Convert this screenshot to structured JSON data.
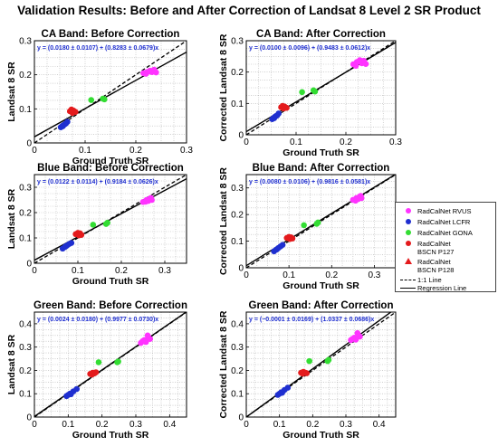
{
  "figure_title": "Validation Results: Before and After Correction of Landsat 8 Level 2 SR Product",
  "colors": {
    "RVUS": "#ff33ff",
    "LCFR": "#1f2fd0",
    "GONA": "#33dd33",
    "P127": "#e41a1c",
    "P128": "#e41a1c",
    "equation": "#1f2fd0"
  },
  "legend": {
    "items": [
      {
        "label": "RadCalNet RVUS",
        "symbol": "dot",
        "color": "#ff33ff"
      },
      {
        "label": "RadCalNet LCFR",
        "symbol": "dot",
        "color": "#1f2fd0"
      },
      {
        "label": "RadCalNet GONA",
        "symbol": "dot",
        "color": "#33dd33"
      },
      {
        "label": "RadCalNet\nBSCN P127",
        "symbol": "dot",
        "color": "#e41a1c"
      },
      {
        "label": "RadCalNet\nBSCN P128",
        "symbol": "triangle",
        "color": "#e41a1c"
      },
      {
        "label": "1:1 Line",
        "symbol": "dashed-line",
        "color": "#000000"
      },
      {
        "label": "Regression Line",
        "symbol": "solid-line",
        "color": "#000000"
      }
    ]
  },
  "chart_data": [
    {
      "type": "scatter",
      "title": "CA Band: Before Correction",
      "xlabel": "Ground Truth SR",
      "ylabel": "Landsat 8 SR",
      "xlim": [
        0,
        0.3
      ],
      "ylim": [
        0,
        0.3
      ],
      "xticks": [
        "0",
        "0.1",
        "0.2",
        "0.3"
      ],
      "yticks": [
        "0",
        "0.1",
        "0.2",
        "0.3"
      ],
      "grid": true,
      "equation": "y = (0.0180 ± 0.0107) + (0.8283 ± 0.0679)x",
      "regression": {
        "intercept": 0.018,
        "slope": 0.8283
      },
      "series": [
        {
          "name": "RadCalNet RVUS",
          "points": [
            [
              0.215,
              0.205
            ],
            [
              0.222,
              0.208
            ],
            [
              0.228,
              0.212
            ],
            [
              0.232,
              0.208
            ],
            [
              0.236,
              0.215
            ],
            [
              0.24,
              0.207
            ],
            [
              0.22,
              0.203
            ],
            [
              0.226,
              0.21
            ]
          ]
        },
        {
          "name": "RadCalNet LCFR",
          "points": [
            [
              0.052,
              0.046
            ],
            [
              0.055,
              0.05
            ],
            [
              0.058,
              0.053
            ],
            [
              0.062,
              0.057
            ],
            [
              0.065,
              0.062
            ],
            [
              0.06,
              0.055
            ],
            [
              0.056,
              0.049
            ]
          ]
        },
        {
          "name": "RadCalNet GONA",
          "points": [
            [
              0.112,
              0.126
            ],
            [
              0.135,
              0.13
            ],
            [
              0.138,
              0.128
            ]
          ]
        },
        {
          "name": "RadCalNet BSCN P127",
          "points": [
            [
              0.07,
              0.093
            ],
            [
              0.073,
              0.098
            ],
            [
              0.077,
              0.095
            ],
            [
              0.081,
              0.091
            ],
            [
              0.075,
              0.088
            ]
          ]
        },
        {
          "name": "RadCalNet BSCN P128",
          "points": []
        }
      ]
    },
    {
      "type": "scatter",
      "title": "CA Band: After Correction",
      "xlabel": "Ground Truth SR",
      "ylabel": "Corrected Landsat 8 SR",
      "xlim": [
        0,
        0.3
      ],
      "ylim": [
        0,
        0.3
      ],
      "xticks": [
        "0",
        "0.1",
        "0.2",
        "0.3"
      ],
      "yticks": [
        "0",
        "0.1",
        "0.2",
        "0.3"
      ],
      "grid": true,
      "equation": "y = (0.0100 ± 0.0096) + (0.9483 ± 0.0612)x",
      "regression": {
        "intercept": 0.01,
        "slope": 0.9483
      },
      "series": [
        {
          "name": "RadCalNet RVUS",
          "points": [
            [
              0.215,
              0.225
            ],
            [
              0.222,
              0.232
            ],
            [
              0.228,
              0.238
            ],
            [
              0.232,
              0.228
            ],
            [
              0.236,
              0.236
            ],
            [
              0.24,
              0.226
            ],
            [
              0.22,
              0.22
            ],
            [
              0.226,
              0.234
            ]
          ]
        },
        {
          "name": "RadCalNet LCFR",
          "points": [
            [
              0.052,
              0.05
            ],
            [
              0.055,
              0.054
            ],
            [
              0.058,
              0.058
            ],
            [
              0.062,
              0.062
            ],
            [
              0.065,
              0.068
            ],
            [
              0.06,
              0.06
            ],
            [
              0.056,
              0.053
            ]
          ]
        },
        {
          "name": "RadCalNet GONA",
          "points": [
            [
              0.112,
              0.136
            ],
            [
              0.135,
              0.142
            ],
            [
              0.138,
              0.138
            ]
          ]
        },
        {
          "name": "RadCalNet BSCN P127",
          "points": [
            [
              0.07,
              0.088
            ],
            [
              0.073,
              0.092
            ],
            [
              0.077,
              0.09
            ],
            [
              0.081,
              0.086
            ],
            [
              0.075,
              0.084
            ]
          ]
        },
        {
          "name": "RadCalNet BSCN P128",
          "points": []
        }
      ]
    },
    {
      "type": "scatter",
      "title": "Blue Band: Before Correction",
      "xlabel": "Ground Truth SR",
      "ylabel": "Landsat 8 SR",
      "xlim": [
        0,
        0.35
      ],
      "ylim": [
        0,
        0.35
      ],
      "xticks": [
        "0",
        "0.1",
        "0.2",
        "0.3"
      ],
      "yticks": [
        "0",
        "0.1",
        "0.2",
        "0.3"
      ],
      "grid": true,
      "equation": "y = (0.0122 ± 0.0114) + (0.9184 ± 0.0626)x",
      "regression": {
        "intercept": 0.0122,
        "slope": 0.9184
      },
      "series": [
        {
          "name": "RadCalNet RVUS",
          "points": [
            [
              0.25,
              0.242
            ],
            [
              0.258,
              0.25
            ],
            [
              0.262,
              0.246
            ],
            [
              0.266,
              0.255
            ],
            [
              0.27,
              0.25
            ],
            [
              0.256,
              0.243
            ],
            [
              0.268,
              0.258
            ]
          ]
        },
        {
          "name": "RadCalNet LCFR",
          "points": [
            [
              0.065,
              0.058
            ],
            [
              0.07,
              0.064
            ],
            [
              0.075,
              0.07
            ],
            [
              0.08,
              0.076
            ],
            [
              0.085,
              0.08
            ],
            [
              0.072,
              0.067
            ]
          ]
        },
        {
          "name": "RadCalNet GONA",
          "points": [
            [
              0.135,
              0.152
            ],
            [
              0.165,
              0.155
            ],
            [
              0.168,
              0.16
            ]
          ]
        },
        {
          "name": "RadCalNet BSCN P127",
          "points": [
            [
              0.095,
              0.115
            ],
            [
              0.1,
              0.12
            ],
            [
              0.105,
              0.118
            ],
            [
              0.108,
              0.112
            ],
            [
              0.102,
              0.11
            ]
          ]
        },
        {
          "name": "RadCalNet BSCN P128",
          "points": []
        }
      ]
    },
    {
      "type": "scatter",
      "title": "Blue Band: After Correction",
      "xlabel": "Ground Truth SR",
      "ylabel": "Corrected Landsat 8 SR",
      "xlim": [
        0,
        0.35
      ],
      "ylim": [
        0,
        0.35
      ],
      "xticks": [
        "0",
        "0.1",
        "0.2",
        "0.3"
      ],
      "yticks": [
        "0",
        "0.1",
        "0.2",
        "0.3"
      ],
      "grid": true,
      "equation": "y = (0.0080 ± 0.0106) + (0.9816 ± 0.0581)x",
      "regression": {
        "intercept": 0.008,
        "slope": 0.9816
      },
      "series": [
        {
          "name": "RadCalNet RVUS",
          "points": [
            [
              0.25,
              0.255
            ],
            [
              0.258,
              0.262
            ],
            [
              0.262,
              0.258
            ],
            [
              0.266,
              0.268
            ],
            [
              0.27,
              0.262
            ],
            [
              0.256,
              0.252
            ],
            [
              0.268,
              0.27
            ]
          ]
        },
        {
          "name": "RadCalNet LCFR",
          "points": [
            [
              0.065,
              0.062
            ],
            [
              0.07,
              0.068
            ],
            [
              0.075,
              0.074
            ],
            [
              0.08,
              0.08
            ],
            [
              0.085,
              0.086
            ],
            [
              0.072,
              0.07
            ]
          ]
        },
        {
          "name": "RadCalNet GONA",
          "points": [
            [
              0.135,
              0.16
            ],
            [
              0.165,
              0.165
            ],
            [
              0.168,
              0.17
            ]
          ]
        },
        {
          "name": "RadCalNet BSCN P127",
          "points": [
            [
              0.095,
              0.112
            ],
            [
              0.1,
              0.116
            ],
            [
              0.105,
              0.114
            ],
            [
              0.108,
              0.11
            ],
            [
              0.102,
              0.108
            ]
          ]
        },
        {
          "name": "RadCalNet BSCN P128",
          "points": []
        }
      ]
    },
    {
      "type": "scatter",
      "title": "Green Band: Before Correction",
      "xlabel": "Ground Truth SR",
      "ylabel": "Landsat 8 SR",
      "xlim": [
        0,
        0.45
      ],
      "ylim": [
        0,
        0.45
      ],
      "xticks": [
        "0",
        "0.1",
        "0.2",
        "0.3",
        "0.4"
      ],
      "yticks": [
        "0",
        "0.1",
        "0.2",
        "0.3",
        "0.4"
      ],
      "grid": true,
      "equation": "y = (0.0024 ± 0.0180) + (0.9977 ± 0.0730)x",
      "regression": {
        "intercept": 0.0024,
        "slope": 0.9977
      },
      "series": [
        {
          "name": "RadCalNet RVUS",
          "points": [
            [
              0.315,
              0.318
            ],
            [
              0.325,
              0.33
            ],
            [
              0.33,
              0.322
            ],
            [
              0.338,
              0.34
            ],
            [
              0.342,
              0.335
            ],
            [
              0.32,
              0.325
            ],
            [
              0.335,
              0.35
            ]
          ]
        },
        {
          "name": "RadCalNet LCFR",
          "points": [
            [
              0.095,
              0.09
            ],
            [
              0.1,
              0.095
            ],
            [
              0.105,
              0.1
            ],
            [
              0.115,
              0.11
            ],
            [
              0.125,
              0.12
            ],
            [
              0.108,
              0.098
            ]
          ]
        },
        {
          "name": "RadCalNet GONA",
          "points": [
            [
              0.19,
              0.235
            ],
            [
              0.245,
              0.235
            ],
            [
              0.248,
              0.238
            ]
          ]
        },
        {
          "name": "RadCalNet BSCN P127",
          "points": [
            [
              0.165,
              0.185
            ],
            [
              0.172,
              0.19
            ],
            [
              0.178,
              0.188
            ],
            [
              0.182,
              0.192
            ],
            [
              0.17,
              0.182
            ]
          ]
        },
        {
          "name": "RadCalNet BSCN P128",
          "points": []
        }
      ]
    },
    {
      "type": "scatter",
      "title": "Green Band: After Correction",
      "xlabel": "Ground Truth SR",
      "ylabel": "Corrected Landsat 8 SR",
      "xlim": [
        0,
        0.45
      ],
      "ylim": [
        0,
        0.45
      ],
      "xticks": [
        "0",
        "0.1",
        "0.2",
        "0.3",
        "0.4"
      ],
      "yticks": [
        "0",
        "0.1",
        "0.2",
        "0.3",
        "0.4"
      ],
      "grid": true,
      "equation": "y = (−0.0001 ± 0.0169) + (1.0337 ± 0.0686)x",
      "regression": {
        "intercept": -0.0001,
        "slope": 1.0337
      },
      "series": [
        {
          "name": "RadCalNet RVUS",
          "points": [
            [
              0.315,
              0.33
            ],
            [
              0.325,
              0.34
            ],
            [
              0.33,
              0.332
            ],
            [
              0.338,
              0.35
            ],
            [
              0.342,
              0.345
            ],
            [
              0.32,
              0.335
            ],
            [
              0.335,
              0.36
            ]
          ]
        },
        {
          "name": "RadCalNet LCFR",
          "points": [
            [
              0.095,
              0.095
            ],
            [
              0.1,
              0.1
            ],
            [
              0.105,
              0.106
            ],
            [
              0.115,
              0.116
            ],
            [
              0.125,
              0.126
            ],
            [
              0.108,
              0.104
            ]
          ]
        },
        {
          "name": "RadCalNet GONA",
          "points": [
            [
              0.19,
              0.24
            ],
            [
              0.245,
              0.24
            ],
            [
              0.248,
              0.245
            ]
          ]
        },
        {
          "name": "RadCalNet BSCN P127",
          "points": [
            [
              0.165,
              0.19
            ],
            [
              0.172,
              0.194
            ],
            [
              0.178,
              0.19
            ],
            [
              0.182,
              0.188
            ],
            [
              0.17,
              0.186
            ]
          ]
        },
        {
          "name": "RadCalNet BSCN P128",
          "points": []
        }
      ]
    }
  ]
}
